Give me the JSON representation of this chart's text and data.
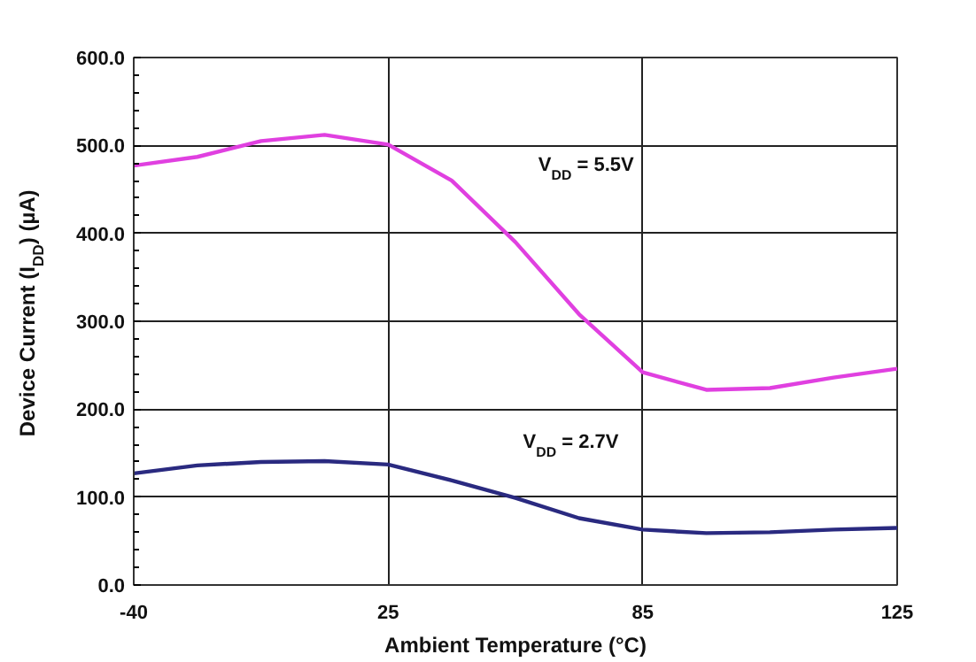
{
  "chart_data": {
    "type": "line",
    "xlabel": "Ambient Temperature (°C)",
    "ylabel": "Device Current (I$_{DD}$) (µA)",
    "categories": [
      "-40",
      null,
      null,
      null,
      "25",
      null,
      null,
      null,
      "85",
      null,
      null,
      null,
      "125"
    ],
    "series": [
      {
        "color": "#e040e0",
        "values": [
          477,
          487,
          505,
          512,
          501,
          460,
          390,
          308,
          242,
          222,
          224,
          236,
          246
        ]
      },
      {
        "color": "#2a2a80",
        "values": [
          127,
          136,
          140,
          141,
          137,
          119,
          99,
          76,
          63,
          59,
          60,
          63,
          65
        ]
      }
    ],
    "ylim": [
      0,
      600
    ],
    "yticks": [
      {
        "value": 0,
        "label": "0.0"
      },
      {
        "value": 20,
        "label": null
      },
      {
        "value": 40,
        "label": null
      },
      {
        "value": 60,
        "label": null
      },
      {
        "value": 80,
        "label": null
      },
      {
        "value": 100,
        "label": "100.0"
      },
      {
        "value": 120,
        "label": null
      },
      {
        "value": 140,
        "label": null
      },
      {
        "value": 160,
        "label": null
      },
      {
        "value": 180,
        "label": null
      },
      {
        "value": 200,
        "label": "200.0"
      },
      {
        "value": 220,
        "label": null
      },
      {
        "value": 240,
        "label": null
      },
      {
        "value": 260,
        "label": null
      },
      {
        "value": 280,
        "label": null
      },
      {
        "value": 300,
        "label": "300.0"
      },
      {
        "value": 320,
        "label": null
      },
      {
        "value": 340,
        "label": null
      },
      {
        "value": 360,
        "label": null
      },
      {
        "value": 380,
        "label": null
      },
      {
        "value": 400,
        "label": "400.0"
      },
      {
        "value": 420,
        "label": null
      },
      {
        "value": 440,
        "label": null
      },
      {
        "value": 460,
        "label": null
      },
      {
        "value": 480,
        "label": null
      },
      {
        "value": 500,
        "label": "500.0"
      },
      {
        "value": 520,
        "label": null
      },
      {
        "value": 540,
        "label": null
      },
      {
        "value": 560,
        "label": null
      },
      {
        "value": 580,
        "label": null
      },
      {
        "value": 600,
        "label": "600.0"
      }
    ],
    "annotations": [
      "V$_{DD}$ = 5.5V",
      "V$_{DD}$ = 2.7V"
    ],
    "grid": true,
    "marker": "none",
    "line_style": "solid"
  }
}
